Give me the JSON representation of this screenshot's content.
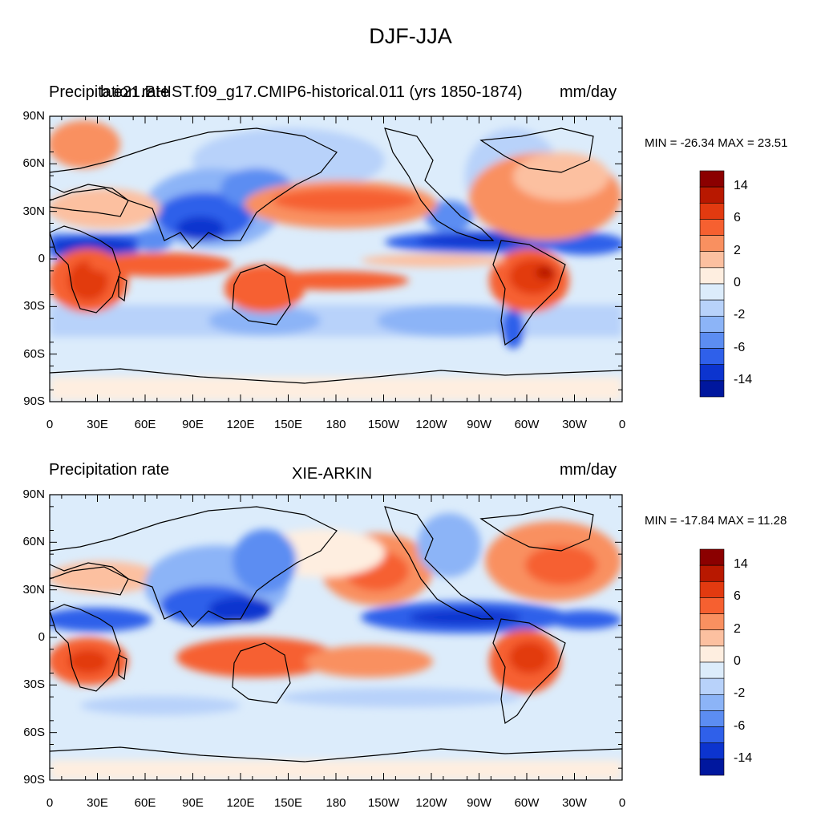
{
  "figure": {
    "title": "DJF-JJA"
  },
  "latitude_labels": [
    "90N",
    "60N",
    "30N",
    "0",
    "30S",
    "60S",
    "90S"
  ],
  "longitude_labels": [
    "0",
    "30E",
    "60E",
    "90E",
    "120E",
    "150E",
    "180",
    "150W",
    "120W",
    "90W",
    "60W",
    "30W",
    "0"
  ],
  "colorbar": {
    "colors": [
      "#8b0000",
      "#b81800",
      "#e23a10",
      "#f66030",
      "#f99060",
      "#fcc0a0",
      "#feeee0",
      "#dcecfb",
      "#b8d2fa",
      "#8cb4f7",
      "#5c8df2",
      "#2f60ea",
      "#0c34cf",
      "#00179e"
    ],
    "tick_labels": [
      "14",
      "6",
      "2",
      "0",
      "-2",
      "-6",
      "-14"
    ]
  },
  "panels": [
    {
      "left_label": "Precipitation rate",
      "center_label": "b.e21.BHIST.f09_g17.CMIP6-historical.011 (yrs 1850-1874)",
      "right_label": "mm/day",
      "min_max": "MIN = -26.34 MAX =  23.51"
    },
    {
      "left_label": "Precipitation rate",
      "center_label": "XIE-ARKIN",
      "right_label": "mm/day",
      "min_max": "MIN = -17.84 MAX =  11.28"
    }
  ]
}
